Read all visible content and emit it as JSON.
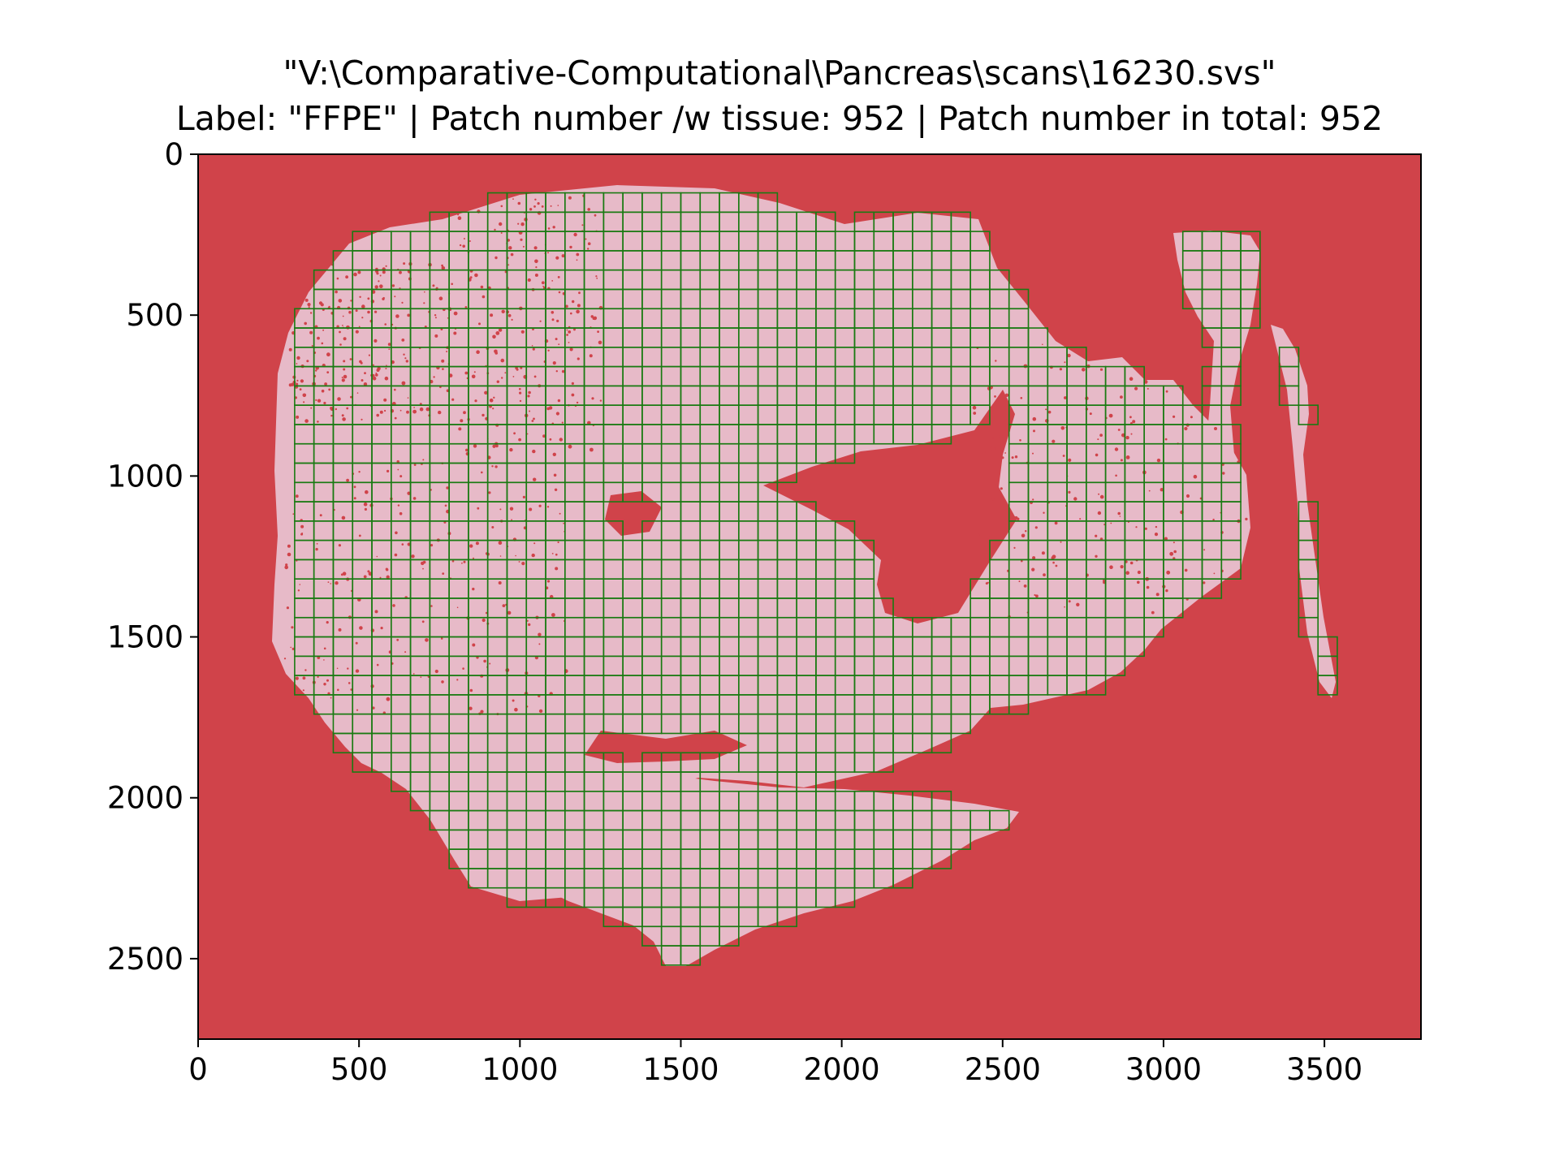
{
  "chart_data": {
    "type": "heatmap",
    "title": "\"V:\\Comparative-Computational\\Pancreas\\scans\\16230.svs\"",
    "subtitle": "Label: \"FFPE\" | Patch number /w tissue: 952 | Patch number in total: 952",
    "xlim": [
      0,
      3800
    ],
    "ylim": [
      2750,
      0
    ],
    "x_ticks": [
      0,
      500,
      1000,
      1500,
      2000,
      2500,
      3000,
      3500
    ],
    "y_ticks": [
      0,
      500,
      1000,
      1500,
      2000,
      2500
    ],
    "x_tick_labels": [
      "0",
      "500",
      "1000",
      "1500",
      "2000",
      "2500",
      "3000",
      "3500"
    ],
    "y_tick_labels": [
      "0",
      "500",
      "1000",
      "1500",
      "2000",
      "2500"
    ],
    "grid": false,
    "background_color": "#d0434a",
    "tissue_color": "#e7bac8",
    "patch_edge_color": "#1a7a12",
    "patch_size": 60,
    "patches_with_tissue": 952,
    "patches_total": 952
  }
}
